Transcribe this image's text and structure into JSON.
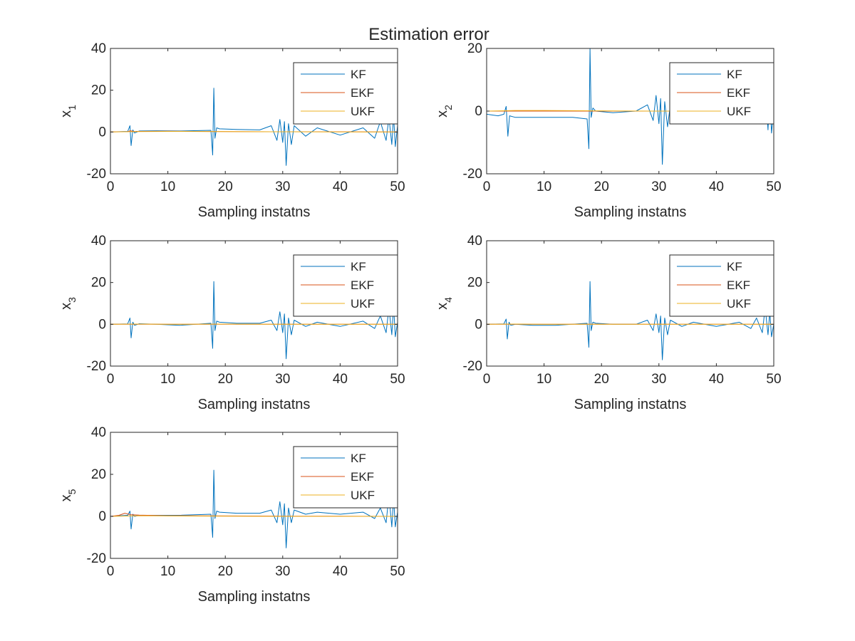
{
  "figure": {
    "title": "Estimation error"
  },
  "chart_data": [
    {
      "type": "line",
      "title": "",
      "xlabel": "Sampling instatns",
      "ylabel_base": "x",
      "ylabel_sub": "1",
      "xlim": [
        0,
        50
      ],
      "ylim": [
        -20,
        40
      ],
      "xticks": [
        0,
        10,
        20,
        30,
        40,
        50
      ],
      "yticks": [
        -20,
        0,
        20,
        40
      ],
      "grid": false,
      "legend_position": "top-right",
      "series": [
        {
          "name": "KF",
          "color": "#0072BD",
          "x": [
            0,
            3,
            3.4,
            3.6,
            3.9,
            4.2,
            5,
            8,
            12,
            17.5,
            17.8,
            18.0,
            18.2,
            18.5,
            19,
            22,
            26,
            28,
            29,
            29.5,
            30.0,
            30.3,
            30.6,
            31.0,
            31.5,
            32,
            34,
            36,
            40,
            44,
            46,
            47,
            48,
            48.5,
            49,
            49.3,
            49.6,
            50
          ],
          "y": [
            0,
            0.3,
            3,
            -6.5,
            1,
            -0.5,
            0.5,
            0.6,
            0.5,
            0.8,
            -11,
            21,
            -3,
            2,
            1.5,
            1.2,
            1,
            3,
            -4,
            6,
            -5,
            5,
            -16,
            4,
            -6,
            3,
            -2,
            2,
            -1.5,
            2,
            -3,
            5,
            -4,
            7,
            -6,
            8,
            -7,
            3
          ]
        },
        {
          "name": "EKF",
          "color": "#D95319",
          "x": [
            0,
            3,
            3.5,
            4,
            10,
            20,
            30,
            40,
            50
          ],
          "y": [
            0,
            0.2,
            0.6,
            0.3,
            0.4,
            0.2,
            0.1,
            0.1,
            0
          ]
        },
        {
          "name": "UKF",
          "color": "#EDB120",
          "x": [
            0,
            5,
            10,
            20,
            30,
            40,
            50
          ],
          "y": [
            0,
            0.2,
            0.3,
            0.2,
            0.1,
            0,
            0
          ]
        }
      ]
    },
    {
      "type": "line",
      "title": "",
      "xlabel": "Sampling instatns",
      "ylabel_base": "x",
      "ylabel_sub": "2",
      "xlim": [
        0,
        50
      ],
      "ylim": [
        -20,
        20
      ],
      "xticks": [
        0,
        10,
        20,
        30,
        40,
        50
      ],
      "yticks": [
        -20,
        0,
        20
      ],
      "grid": false,
      "legend_position": "top-right",
      "series": [
        {
          "name": "KF",
          "color": "#0072BD",
          "x": [
            0,
            2,
            3,
            3.4,
            3.7,
            4.0,
            5,
            10,
            15,
            17.5,
            17.8,
            18.0,
            18.2,
            18.5,
            19,
            22,
            26,
            28,
            29,
            29.5,
            30.0,
            30.3,
            30.6,
            31.0,
            31.5,
            32,
            34,
            36,
            40,
            44,
            46,
            47,
            48,
            48.5,
            49,
            49.3,
            49.6,
            50
          ],
          "y": [
            -1,
            -1.5,
            -1,
            1.5,
            -8,
            -1.5,
            -2,
            -2,
            -2,
            -2.5,
            -12,
            20,
            -2,
            1,
            0,
            -0.5,
            0,
            2,
            -3,
            5,
            -4,
            4,
            -17,
            3,
            -5,
            2,
            -1,
            1,
            -1,
            1.5,
            -3,
            4,
            -4,
            8,
            -6,
            7,
            -7,
            0
          ]
        },
        {
          "name": "EKF",
          "color": "#D95319",
          "x": [
            0,
            5,
            10,
            20,
            30,
            40,
            50
          ],
          "y": [
            0,
            0,
            0,
            0,
            0,
            0,
            0
          ]
        },
        {
          "name": "UKF",
          "color": "#EDB120",
          "x": [
            0,
            5,
            10,
            20,
            30,
            40,
            50
          ],
          "y": [
            0,
            0.2,
            0.2,
            0.1,
            0,
            0,
            0
          ]
        }
      ]
    },
    {
      "type": "line",
      "title": "",
      "xlabel": "Sampling instatns",
      "ylabel_base": "x",
      "ylabel_sub": "3",
      "xlim": [
        0,
        50
      ],
      "ylim": [
        -20,
        40
      ],
      "xticks": [
        0,
        10,
        20,
        30,
        40,
        50
      ],
      "yticks": [
        -20,
        0,
        20,
        40
      ],
      "grid": false,
      "legend_position": "top-right",
      "series": [
        {
          "name": "KF",
          "color": "#0072BD",
          "x": [
            0,
            3,
            3.4,
            3.6,
            3.9,
            4.2,
            5,
            8,
            12,
            17.5,
            17.8,
            18.0,
            18.2,
            18.5,
            19,
            22,
            26,
            28,
            29,
            29.5,
            30.0,
            30.3,
            30.6,
            31.0,
            31.5,
            32,
            34,
            36,
            40,
            44,
            46,
            47,
            48,
            48.5,
            49,
            49.3,
            49.6,
            50
          ],
          "y": [
            0,
            0.2,
            3,
            -6.5,
            1,
            -0.5,
            0.3,
            0,
            -0.5,
            0.5,
            -11.5,
            20.5,
            -3,
            1.5,
            1,
            0.5,
            0.5,
            2,
            -3,
            6,
            -4,
            5,
            -16.5,
            3,
            -5,
            2,
            -1,
            1,
            -1,
            1.5,
            -2,
            4,
            -4,
            8,
            -5,
            9,
            -6,
            1
          ]
        },
        {
          "name": "EKF",
          "color": "#D95319",
          "x": [
            0,
            5,
            10,
            20,
            30,
            40,
            50
          ],
          "y": [
            0,
            0,
            0,
            0,
            0,
            0,
            0
          ]
        },
        {
          "name": "UKF",
          "color": "#EDB120",
          "x": [
            0,
            5,
            10,
            20,
            30,
            40,
            50
          ],
          "y": [
            0,
            0.1,
            0,
            0.1,
            0,
            0,
            0
          ]
        }
      ]
    },
    {
      "type": "line",
      "title": "",
      "xlabel": "Sampling instatns",
      "ylabel_base": "x",
      "ylabel_sub": "4",
      "xlim": [
        0,
        50
      ],
      "ylim": [
        -20,
        40
      ],
      "xticks": [
        0,
        10,
        20,
        30,
        40,
        50
      ],
      "yticks": [
        -20,
        0,
        20,
        40
      ],
      "grid": false,
      "legend_position": "top-right",
      "series": [
        {
          "name": "KF",
          "color": "#0072BD",
          "x": [
            0,
            3,
            3.4,
            3.6,
            3.9,
            4.2,
            5,
            8,
            12,
            17.5,
            17.8,
            18.0,
            18.2,
            18.5,
            19,
            22,
            26,
            28,
            29,
            29.5,
            30.0,
            30.3,
            30.6,
            31.0,
            31.5,
            32,
            34,
            36,
            40,
            44,
            46,
            47,
            48,
            48.5,
            49,
            49.3,
            49.6,
            50
          ],
          "y": [
            0,
            0.2,
            2.5,
            -7,
            1,
            -0.5,
            0,
            -0.5,
            -0.5,
            0.5,
            -11,
            20.5,
            -3,
            1,
            0.5,
            0,
            0,
            2,
            -3,
            5,
            -4,
            4,
            -17,
            3,
            -5,
            2,
            -1,
            1,
            -1,
            1,
            -2,
            3,
            -4,
            8,
            -5,
            6,
            -6,
            0
          ]
        },
        {
          "name": "EKF",
          "color": "#D95319",
          "x": [
            0,
            5,
            10,
            20,
            30,
            40,
            50
          ],
          "y": [
            0,
            0,
            0,
            0,
            0,
            0,
            0
          ]
        },
        {
          "name": "UKF",
          "color": "#EDB120",
          "x": [
            0,
            5,
            10,
            20,
            30,
            40,
            50
          ],
          "y": [
            0,
            0.1,
            0,
            0,
            0,
            0,
            0
          ]
        }
      ]
    },
    {
      "type": "line",
      "title": "",
      "xlabel": "Sampling instatns",
      "ylabel_base": "x",
      "ylabel_sub": "5",
      "xlim": [
        0,
        50
      ],
      "ylim": [
        -20,
        40
      ],
      "xticks": [
        0,
        10,
        20,
        30,
        40,
        50
      ],
      "yticks": [
        -20,
        0,
        20,
        40
      ],
      "grid": false,
      "legend_position": "top-right",
      "series": [
        {
          "name": "KF",
          "color": "#0072BD",
          "x": [
            0,
            3,
            3.4,
            3.6,
            3.9,
            4.2,
            5,
            8,
            12,
            17.5,
            17.8,
            18.0,
            18.2,
            18.5,
            19,
            22,
            26,
            28,
            29,
            29.5,
            30.0,
            30.3,
            30.6,
            31.0,
            31.5,
            32,
            34,
            36,
            40,
            44,
            46,
            47,
            48,
            48.5,
            49,
            49.3,
            49.6,
            50
          ],
          "y": [
            0,
            0.5,
            2.5,
            -6,
            1,
            0,
            0.5,
            0.5,
            0.5,
            1,
            -10,
            22,
            -1,
            2.5,
            2,
            1.5,
            1.5,
            3,
            -3,
            7,
            -4,
            6,
            -15,
            4,
            -3,
            3,
            1,
            2,
            1,
            2,
            -1,
            4,
            -3,
            10,
            -5,
            9,
            -5,
            2
          ]
        },
        {
          "name": "EKF",
          "color": "#D95319",
          "x": [
            0,
            1.5,
            2.5,
            3.5,
            5,
            10,
            20,
            30,
            40,
            50
          ],
          "y": [
            0,
            0.5,
            1.5,
            0.8,
            0.6,
            0.3,
            0.2,
            0.1,
            0.1,
            0
          ]
        },
        {
          "name": "UKF",
          "color": "#EDB120",
          "x": [
            0,
            5,
            10,
            20,
            30,
            40,
            50
          ],
          "y": [
            0,
            0.3,
            0.2,
            0.1,
            0,
            0,
            0
          ]
        }
      ]
    }
  ]
}
